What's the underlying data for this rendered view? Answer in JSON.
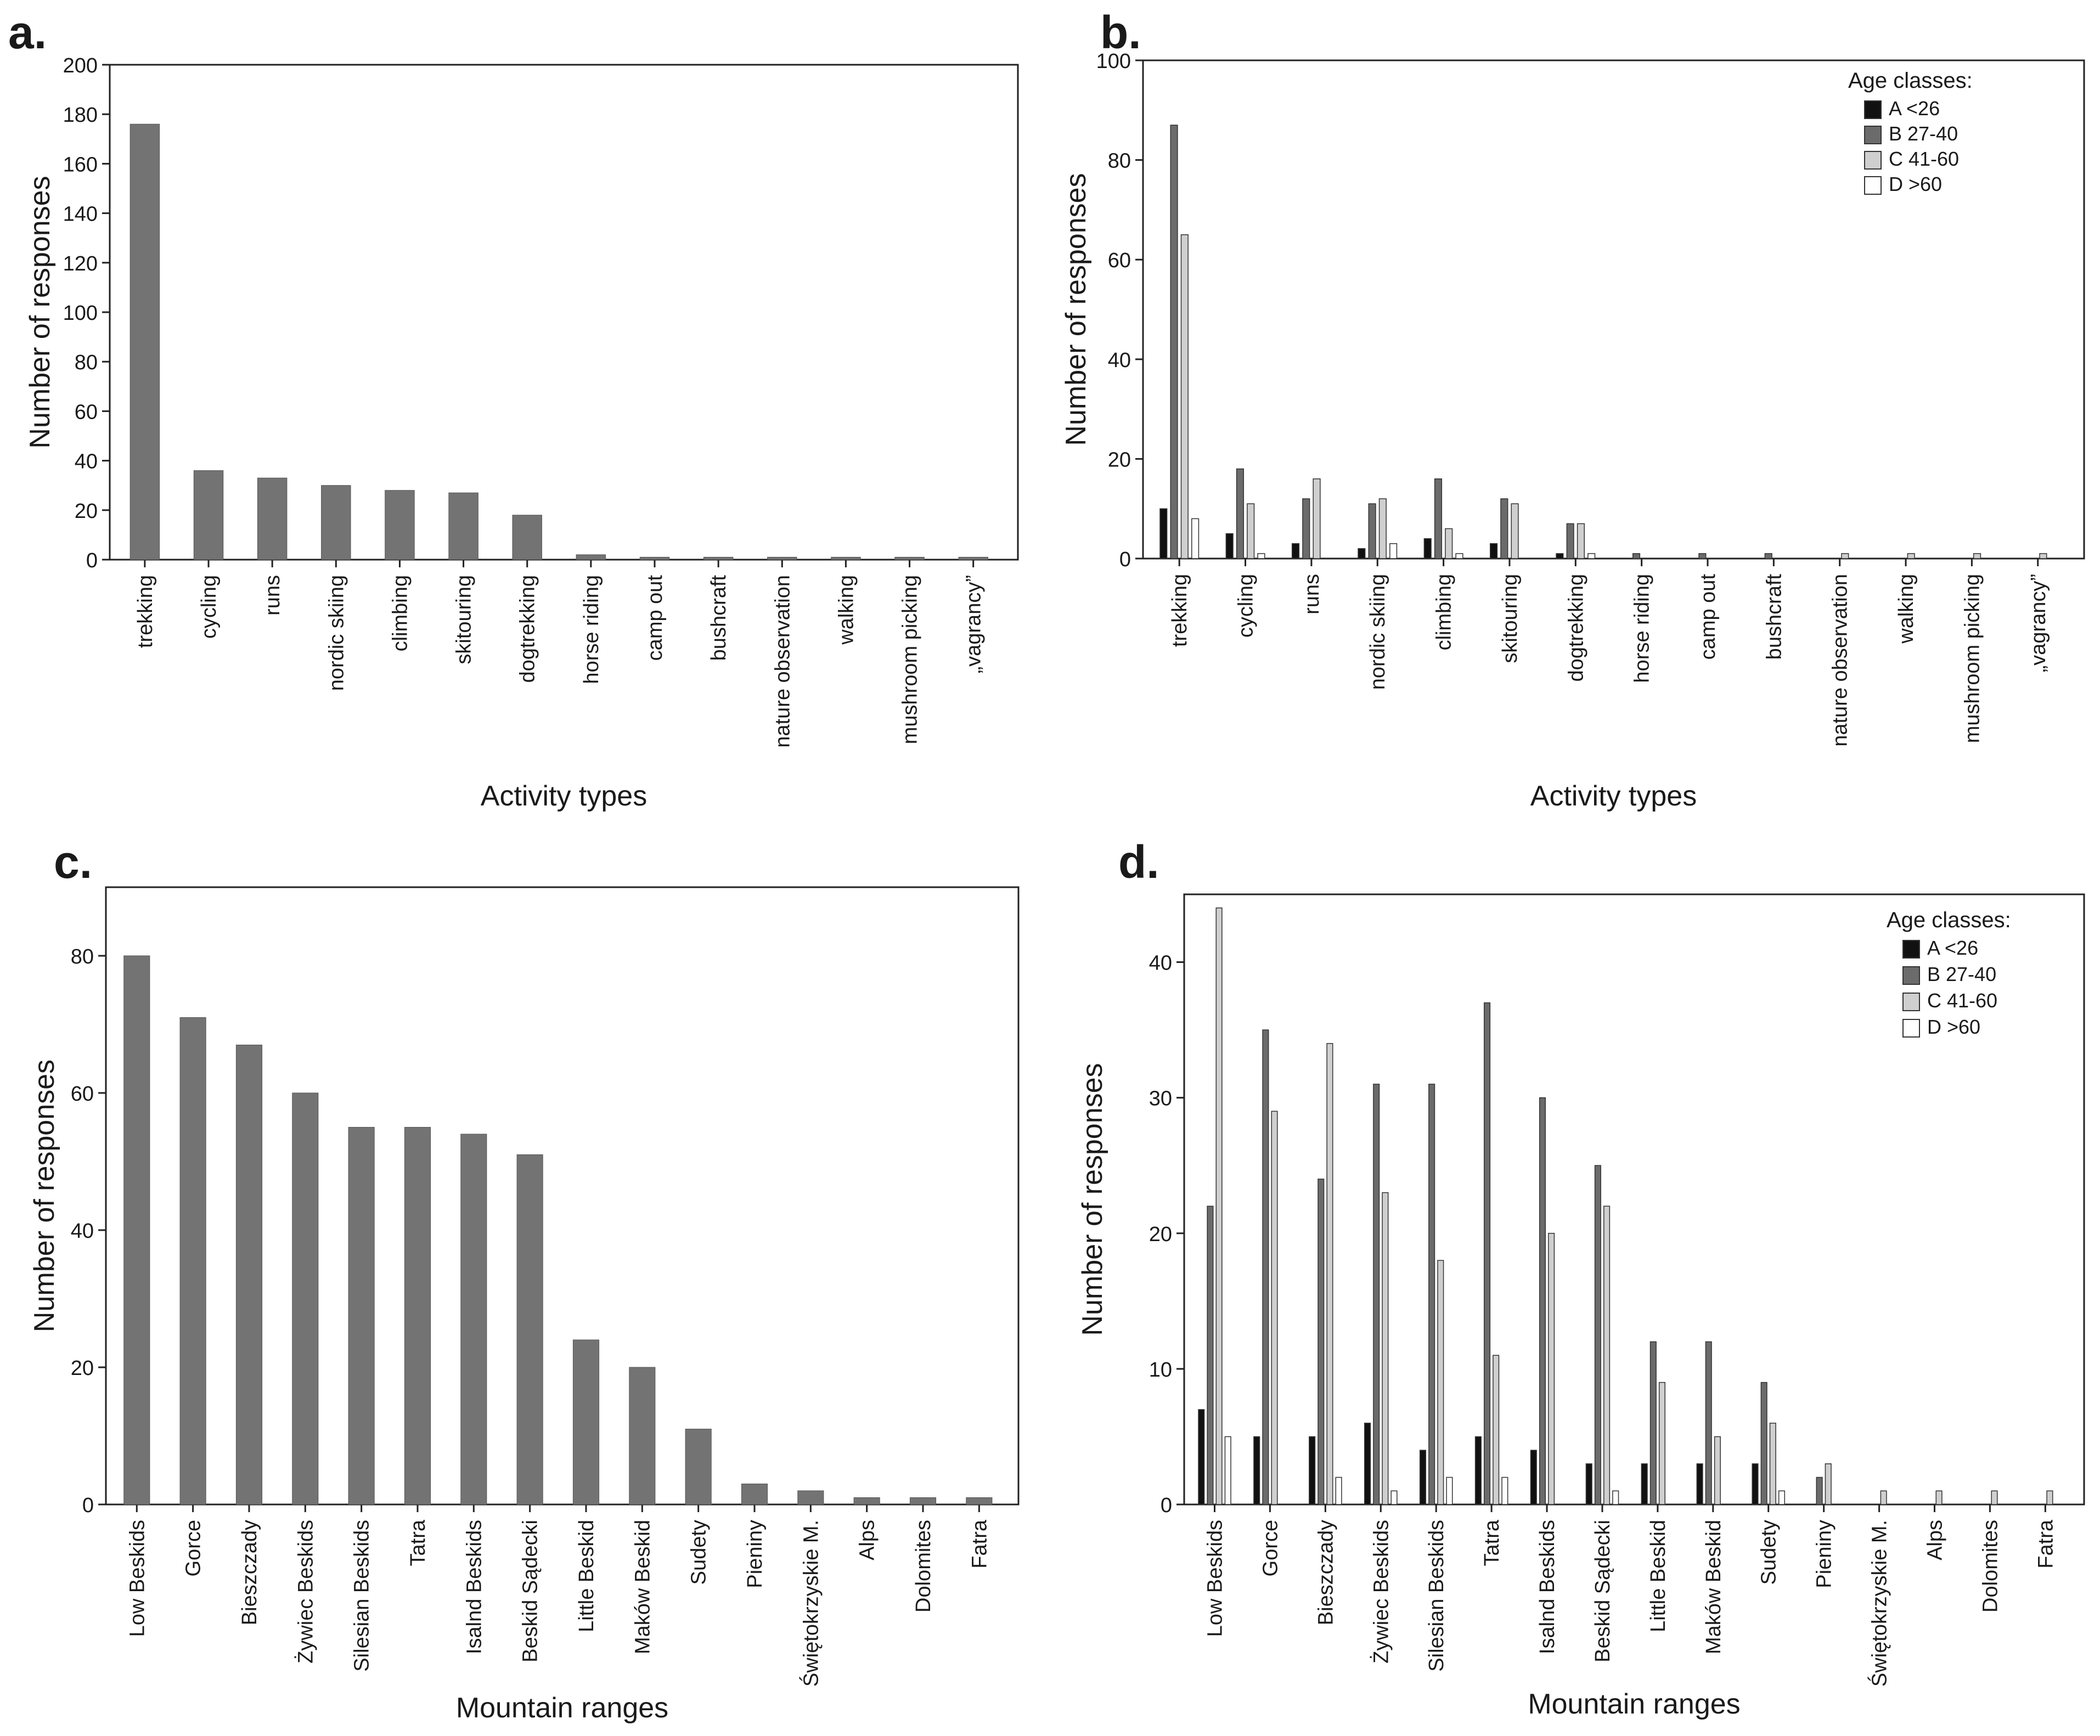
{
  "chart_data": [
    {
      "panel": "a.",
      "type": "bar",
      "xlabel": "Activity types",
      "ylabel": "Number of responses",
      "ylim": [
        0,
        200
      ],
      "yticks": [
        "0",
        "20",
        "40",
        "60",
        "80",
        "100",
        "120",
        "140",
        "160",
        "180",
        "200"
      ],
      "categories": [
        "trekking",
        "cycling",
        "runs",
        "nordic skiing",
        "climbing",
        "skitouring",
        "dogtrekking",
        "horse riding",
        "camp out",
        "bushcraft",
        "nature observation",
        "walking",
        "mushroom picking",
        "„vagrancy”"
      ],
      "values": [
        176,
        36,
        33,
        30,
        28,
        27,
        18,
        2,
        1,
        1,
        1,
        1,
        1,
        1
      ]
    },
    {
      "panel": "b.",
      "type": "bar",
      "xlabel": "Activity types",
      "ylabel": "Number of responses",
      "ylim": [
        0,
        100
      ],
      "yticks": [
        "0",
        "20",
        "40",
        "60",
        "80",
        "100"
      ],
      "legend_title": "Age classes:",
      "legend_position": "top-right",
      "categories": [
        "trekking",
        "cycling",
        "runs",
        "nordic skiing",
        "climbing",
        "skitouring",
        "dogtrekking",
        "horse riding",
        "camp out",
        "bushcraft",
        "nature observation",
        "walking",
        "mushroom picking",
        "„vagrancy”"
      ],
      "series": [
        {
          "name": "A <26",
          "color": "#111111",
          "values": [
            10,
            5,
            3,
            2,
            4,
            3,
            1,
            0,
            0,
            0,
            0,
            0,
            0,
            0
          ]
        },
        {
          "name": "B 27-40",
          "color": "#6b6b6b",
          "values": [
            87,
            18,
            12,
            11,
            16,
            12,
            7,
            1,
            1,
            1,
            0,
            0,
            0,
            0
          ]
        },
        {
          "name": "C 41-60",
          "color": "#cfcfcf",
          "values": [
            65,
            11,
            16,
            12,
            6,
            11,
            7,
            0,
            0,
            0,
            1,
            1,
            1,
            1
          ]
        },
        {
          "name": "D >60",
          "color": "#ffffff",
          "values": [
            8,
            1,
            0,
            3,
            1,
            0,
            1,
            0,
            0,
            0,
            0,
            0,
            0,
            0
          ]
        }
      ]
    },
    {
      "panel": "c.",
      "type": "bar",
      "xlabel": "Mountain ranges",
      "ylabel": "Number of responses",
      "ylim": [
        0,
        90
      ],
      "yticks": [
        "0",
        "20",
        "40",
        "60",
        "80"
      ],
      "categories": [
        "Low Beskids",
        "Gorce",
        "Bieszczady",
        "Żywiec Beskids",
        "Silesian Beskids",
        "Tatra",
        "Isalnd Beskids",
        "Beskid Sądecki",
        "Little Beskid",
        "Maków Beskid",
        "Sudety",
        "Pieniny",
        "Świętokrzyskie M.",
        "Alps",
        "Dolomites",
        "Fatra"
      ],
      "values": [
        80,
        71,
        67,
        60,
        55,
        55,
        54,
        51,
        24,
        20,
        11,
        3,
        2,
        1,
        1,
        1
      ]
    },
    {
      "panel": "d.",
      "type": "bar",
      "xlabel": "Mountain ranges",
      "ylabel": "Number of responses",
      "ylim": [
        0,
        45
      ],
      "yticks": [
        "0",
        "10",
        "20",
        "30",
        "40"
      ],
      "legend_title": "Age classes:",
      "legend_position": "top-right",
      "categories": [
        "Low Beskids",
        "Gorce",
        "Bieszczady",
        "Żywiec Beskids",
        "Silesian Beskids",
        "Tatra",
        "Isalnd Beskids",
        "Beskid Sądecki",
        "Little Beskid",
        "Maków Beskid",
        "Sudety",
        "Pieniny",
        "Świętokrzyskie M.",
        "Alps",
        "Dolomites",
        "Fatra"
      ],
      "series": [
        {
          "name": "A <26",
          "color": "#111111",
          "values": [
            7,
            5,
            5,
            6,
            4,
            5,
            4,
            3,
            3,
            3,
            3,
            0,
            0,
            0,
            0,
            0
          ]
        },
        {
          "name": "B 27-40",
          "color": "#6b6b6b",
          "values": [
            22,
            35,
            24,
            31,
            31,
            37,
            30,
            25,
            12,
            12,
            9,
            2,
            0,
            0,
            0,
            0
          ]
        },
        {
          "name": "C 41-60",
          "color": "#cfcfcf",
          "values": [
            44,
            29,
            34,
            23,
            18,
            11,
            20,
            22,
            9,
            5,
            6,
            3,
            1,
            1,
            1,
            1
          ]
        },
        {
          "name": "D >60",
          "color": "#ffffff",
          "values": [
            5,
            0,
            2,
            1,
            2,
            2,
            0,
            1,
            0,
            0,
            1,
            0,
            0,
            0,
            0,
            0
          ]
        }
      ]
    }
  ]
}
